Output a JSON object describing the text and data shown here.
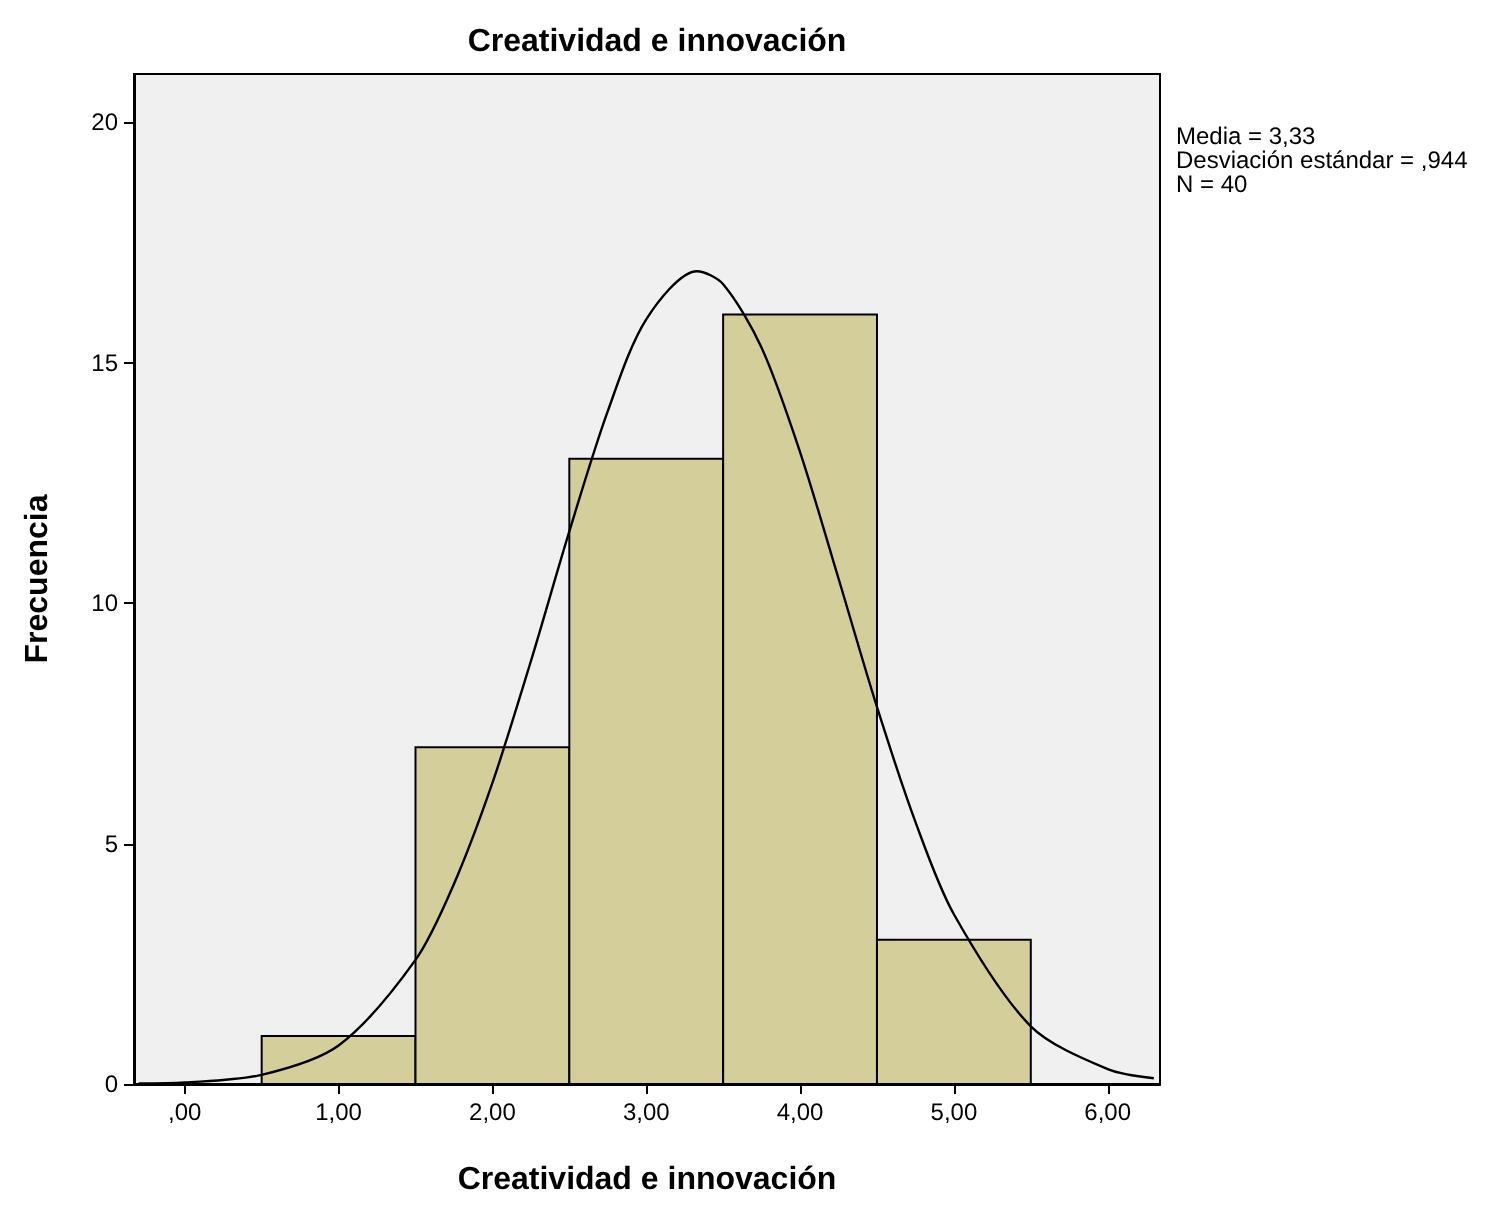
{
  "chart_data": {
    "type": "histogram",
    "title": "Creatividad e innovación",
    "xlabel": "Creatividad e innovación",
    "ylabel": "Frecuencia",
    "bins": [
      0.5,
      1.5,
      2.5,
      3.5,
      4.5,
      5.5
    ],
    "values": [
      1,
      7,
      13,
      16,
      3
    ],
    "color": "#d3ce9a",
    "series": [
      {
        "type": "line",
        "color": "#000000",
        "x": [
          -0.3,
          0,
          0.5,
          1,
          1.5,
          1.75,
          2,
          2.25,
          2.5,
          2.75,
          3,
          3.33,
          3.5,
          3.75,
          4,
          4.25,
          4.5,
          4.75,
          5,
          5.5,
          6,
          6.3
        ],
        "values": [
          0.01,
          0.03,
          0.19,
          0.8,
          2.58,
          4.16,
          6.26,
          8.79,
          11.49,
          13.99,
          15.9,
          16.9,
          16.63,
          15.31,
          13.14,
          10.51,
          7.84,
          5.45,
          3.53,
          1.2,
          0.31,
          0.12
        ]
      }
    ],
    "xlim": [
      -0.33,
      6.34
    ],
    "xticks": [
      {
        "value": 0,
        "label": ",00"
      },
      {
        "value": 1,
        "label": "1,00"
      },
      {
        "value": 2,
        "label": "2,00"
      },
      {
        "value": 3,
        "label": "3,00"
      },
      {
        "value": 4,
        "label": "4,00"
      },
      {
        "value": 5,
        "label": "5,00"
      },
      {
        "value": 6,
        "label": "6,00"
      }
    ],
    "ylim": [
      0,
      21
    ],
    "yticks": [
      0,
      5,
      10,
      15,
      20
    ],
    "grid": false,
    "marker": "none",
    "line_style": "solid",
    "annotations": [
      "Media = 3,33",
      "Desviación estándar = ,944",
      "N = 40"
    ]
  }
}
